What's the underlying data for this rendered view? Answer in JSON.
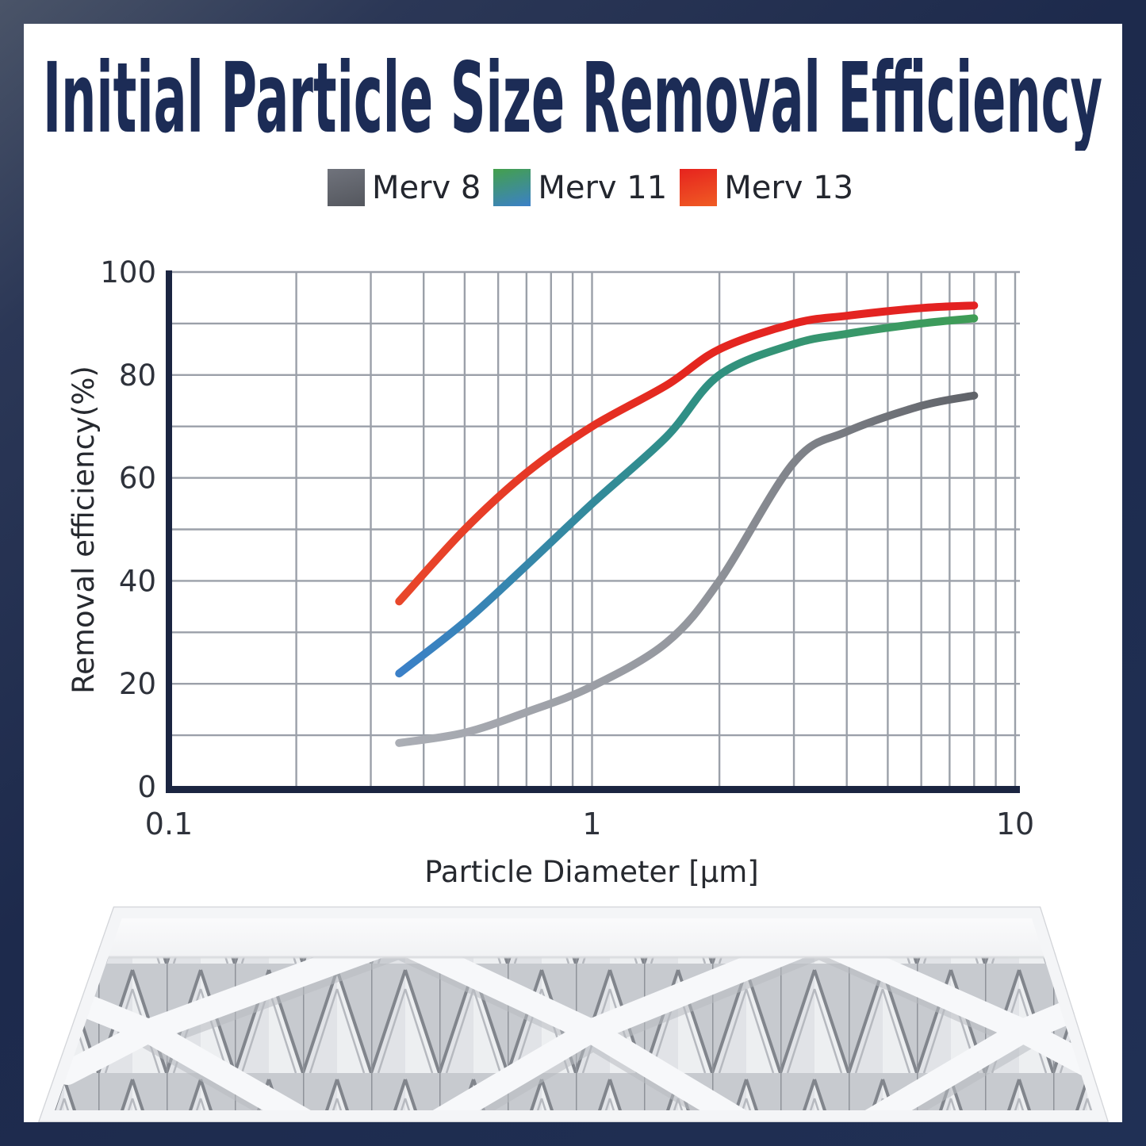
{
  "title": "Initial Particle Size Removal Efficiency",
  "title_color": "#1c2c56",
  "legend": {
    "items": [
      {
        "label": "Merv 8",
        "swatch_colors": [
          "#70737c",
          "#54575e"
        ]
      },
      {
        "label": "Merv 11",
        "swatch_colors": [
          "#44a04c",
          "#3b80c8"
        ]
      },
      {
        "label": "Merv 13",
        "swatch_colors": [
          "#e6231e",
          "#f05c24"
        ]
      }
    ]
  },
  "chart_data": {
    "type": "line",
    "title": "",
    "xlabel": "Particle Diameter [μm]",
    "ylabel": "Removal efficiency(%)",
    "x_scale": "log",
    "xlim": [
      0.1,
      10
    ],
    "ylim": [
      0,
      100
    ],
    "x_tick_labels": [
      "0.1",
      "1",
      "10"
    ],
    "x_tick_values": [
      0.1,
      1,
      10
    ],
    "y_tick_values": [
      0,
      20,
      40,
      60,
      80,
      100
    ],
    "grid": "on",
    "legend_position": "top",
    "axis_color": "#1b2541",
    "grid_color": "#9ba0a9",
    "tick_label_color": "#2e323b",
    "x": [
      0.35,
      0.5,
      0.7,
      1,
      1.5,
      2,
      3,
      4,
      6,
      8
    ],
    "series": [
      {
        "name": "Merv 8",
        "color_stops": [
          "#abaeb5",
          "#94979e",
          "#606369"
        ],
        "values": [
          8.5,
          10.5,
          14.5,
          19.5,
          28,
          40,
          63,
          69,
          74,
          76
        ]
      },
      {
        "name": "Merv 11",
        "color_stops": [
          "#3b80c8",
          "#2f8f85",
          "#3f9d55"
        ],
        "values": [
          22,
          32,
          43,
          55,
          68,
          80,
          86,
          88,
          90,
          91
        ]
      },
      {
        "name": "Merv 13",
        "color_stops": [
          "#e8472b",
          "#e4261f",
          "#e32222"
        ],
        "values": [
          36,
          50,
          61,
          70,
          78,
          85,
          90,
          91.5,
          93,
          93.5
        ]
      }
    ]
  },
  "footer_image": {
    "description": "pleated air filter photo"
  }
}
